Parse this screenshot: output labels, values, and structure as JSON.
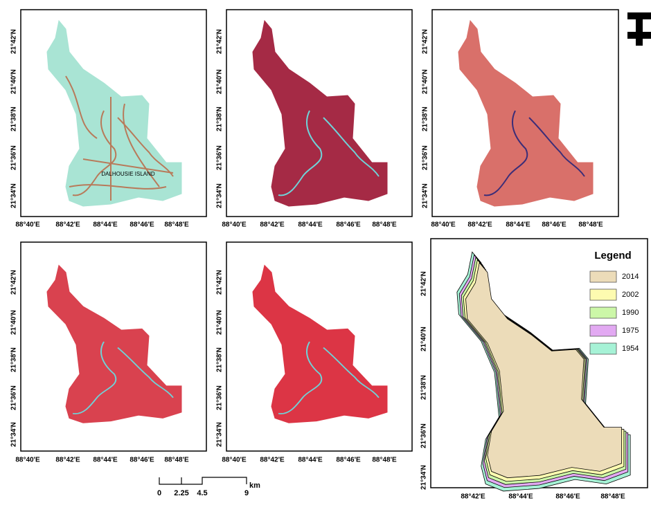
{
  "panels": [
    {
      "y_labels": [
        "21°42'N",
        "21°40'N",
        "21°38'N",
        "21°36'N",
        "21°34'N"
      ],
      "x_labels": [
        "88°40'E",
        "88°42'E",
        "88°44'E",
        "88°46'E",
        "88°48'E"
      ]
    },
    {
      "y_labels": [
        "21°42'N",
        "21°40'N",
        "21°38'N",
        "21°36'N",
        "21°34'N"
      ],
      "x_labels": [
        "88°40'E",
        "88°42'E",
        "88°44'E",
        "88°46'E",
        "88°48'E"
      ]
    },
    {
      "y_labels": [
        "21°42'N",
        "21°40'N",
        "21°38'N",
        "21°36'N",
        "21°34'N"
      ],
      "x_labels": [
        "88°40'E",
        "88°42'E",
        "88°44'E",
        "88°46'E",
        "88°48'E"
      ]
    },
    {
      "y_labels": [
        "21°42'N",
        "21°40'N",
        "21°38'N",
        "21°36'N",
        "21°34'N"
      ],
      "x_labels": [
        "88°40'E",
        "88°42'E",
        "88°44'E",
        "88°46'E",
        "88°48'E"
      ]
    },
    {
      "y_labels": [
        "21°42'N",
        "21°40'N",
        "21°38'N",
        "21°36'N",
        "21°34'N"
      ],
      "x_labels": [
        "88°40'E",
        "88°42'E",
        "88°44'E",
        "88°46'E",
        "88°48'E"
      ]
    },
    {
      "y_labels": [
        "21°42'N",
        "21°40'N",
        "21°38'N",
        "21°36'N",
        "21°34'N"
      ],
      "x_labels": [
        "88°42'E",
        "88°44'E",
        "88°46'E",
        "88°48'E"
      ]
    }
  ],
  "map_label": "DALHOUSIE ISLAND",
  "legend": {
    "title": "Legend",
    "items": [
      {
        "label": "2014",
        "color": "#ecdcb9"
      },
      {
        "label": "2002",
        "color": "#fdfbb0"
      },
      {
        "label": "1990",
        "color": "#ccf7a8"
      },
      {
        "label": "1975",
        "color": "#e2a9f2"
      },
      {
        "label": "1954",
        "color": "#a6f2d6"
      }
    ]
  },
  "scale_bar": {
    "labels": [
      "0",
      "2.25",
      "4.5",
      "9"
    ],
    "unit": "km"
  }
}
